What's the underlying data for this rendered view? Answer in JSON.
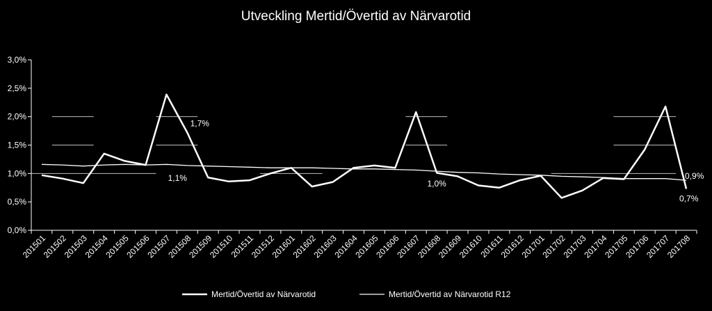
{
  "chart_data": {
    "type": "line",
    "title": "Utveckling Mertid/Övertid av Närvarotid",
    "xlabel": "",
    "ylabel": "",
    "ylim": [
      0,
      3
    ],
    "y_ticks": [
      0,
      0.5,
      1,
      1.5,
      2,
      2.5,
      3
    ],
    "y_tick_labels": [
      "0,0%",
      "0,5%",
      "1,0%",
      "1,5%",
      "2,0%",
      "2,5%",
      "3,0%"
    ],
    "categories": [
      "201501",
      "201502",
      "201503",
      "201504",
      "201505",
      "201506",
      "201507",
      "201508",
      "201509",
      "201510",
      "201511",
      "201512",
      "201601",
      "201602",
      "201603",
      "201604",
      "201605",
      "201606",
      "201607",
      "201608",
      "201609",
      "201610",
      "201611",
      "201612",
      "201701",
      "201702",
      "201703",
      "201704",
      "201705",
      "201706",
      "201707",
      "201708"
    ],
    "series": [
      {
        "name": "Mertid/Övertid av Närvarotid",
        "color": "#ffffff",
        "values": [
          0.97,
          0.91,
          0.83,
          1.35,
          1.22,
          1.15,
          2.39,
          1.72,
          0.93,
          0.86,
          0.88,
          1.0,
          1.1,
          0.77,
          0.85,
          1.1,
          1.14,
          1.1,
          2.08,
          1.01,
          0.95,
          0.79,
          0.75,
          0.88,
          0.96,
          0.57,
          0.7,
          0.92,
          0.9,
          1.42,
          2.18,
          0.73
        ]
      },
      {
        "name": "Mertid/Övertid av Närvarotid R12",
        "color": "#ffffff",
        "values": [
          1.16,
          1.15,
          1.13,
          1.15,
          1.16,
          1.15,
          1.16,
          1.14,
          1.13,
          1.12,
          1.11,
          1.1,
          1.1,
          1.1,
          1.09,
          1.08,
          1.08,
          1.07,
          1.06,
          1.04,
          1.02,
          1.01,
          0.99,
          0.98,
          0.97,
          0.95,
          0.94,
          0.93,
          0.91,
          0.91,
          0.91,
          0.88
        ]
      }
    ],
    "data_labels": [
      {
        "series": 0,
        "index": 7,
        "text": "1,7%"
      },
      {
        "series": 1,
        "index": 7,
        "text": "1,1%"
      },
      {
        "series": 1,
        "index": 19,
        "text": "1,0%"
      },
      {
        "series": 1,
        "index": 31,
        "text": "0,9%"
      },
      {
        "series": 0,
        "index": 31,
        "text": "0,7%"
      }
    ],
    "grid": false,
    "legend_position": "bottom"
  }
}
